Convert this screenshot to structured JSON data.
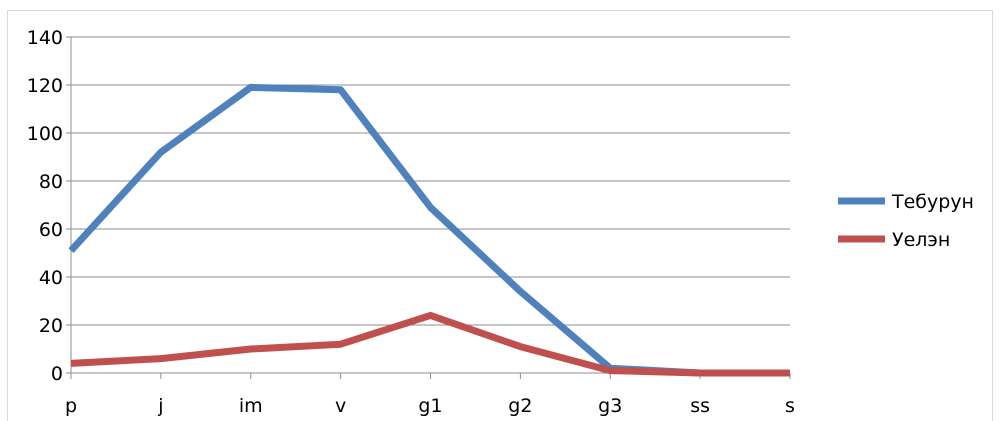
{
  "chart_data": {
    "type": "line",
    "categories": [
      "p",
      "j",
      "im",
      "v",
      "g1",
      "g2",
      "g3",
      "ss",
      "s"
    ],
    "series": [
      {
        "name": "Тебурун",
        "values": [
          51,
          92,
          119,
          118,
          69,
          34,
          2,
          0,
          0
        ],
        "color": "#4f81bd"
      },
      {
        "name": "Уелэн",
        "values": [
          4,
          6,
          10,
          12,
          24,
          11,
          1,
          0,
          0
        ],
        "color": "#c0504d"
      }
    ],
    "yticks": [
      "0",
      "20",
      "40",
      "60",
      "80",
      "100",
      "120",
      "140"
    ],
    "ylim": [
      0,
      140
    ],
    "grid": true,
    "legend_position": "right"
  }
}
